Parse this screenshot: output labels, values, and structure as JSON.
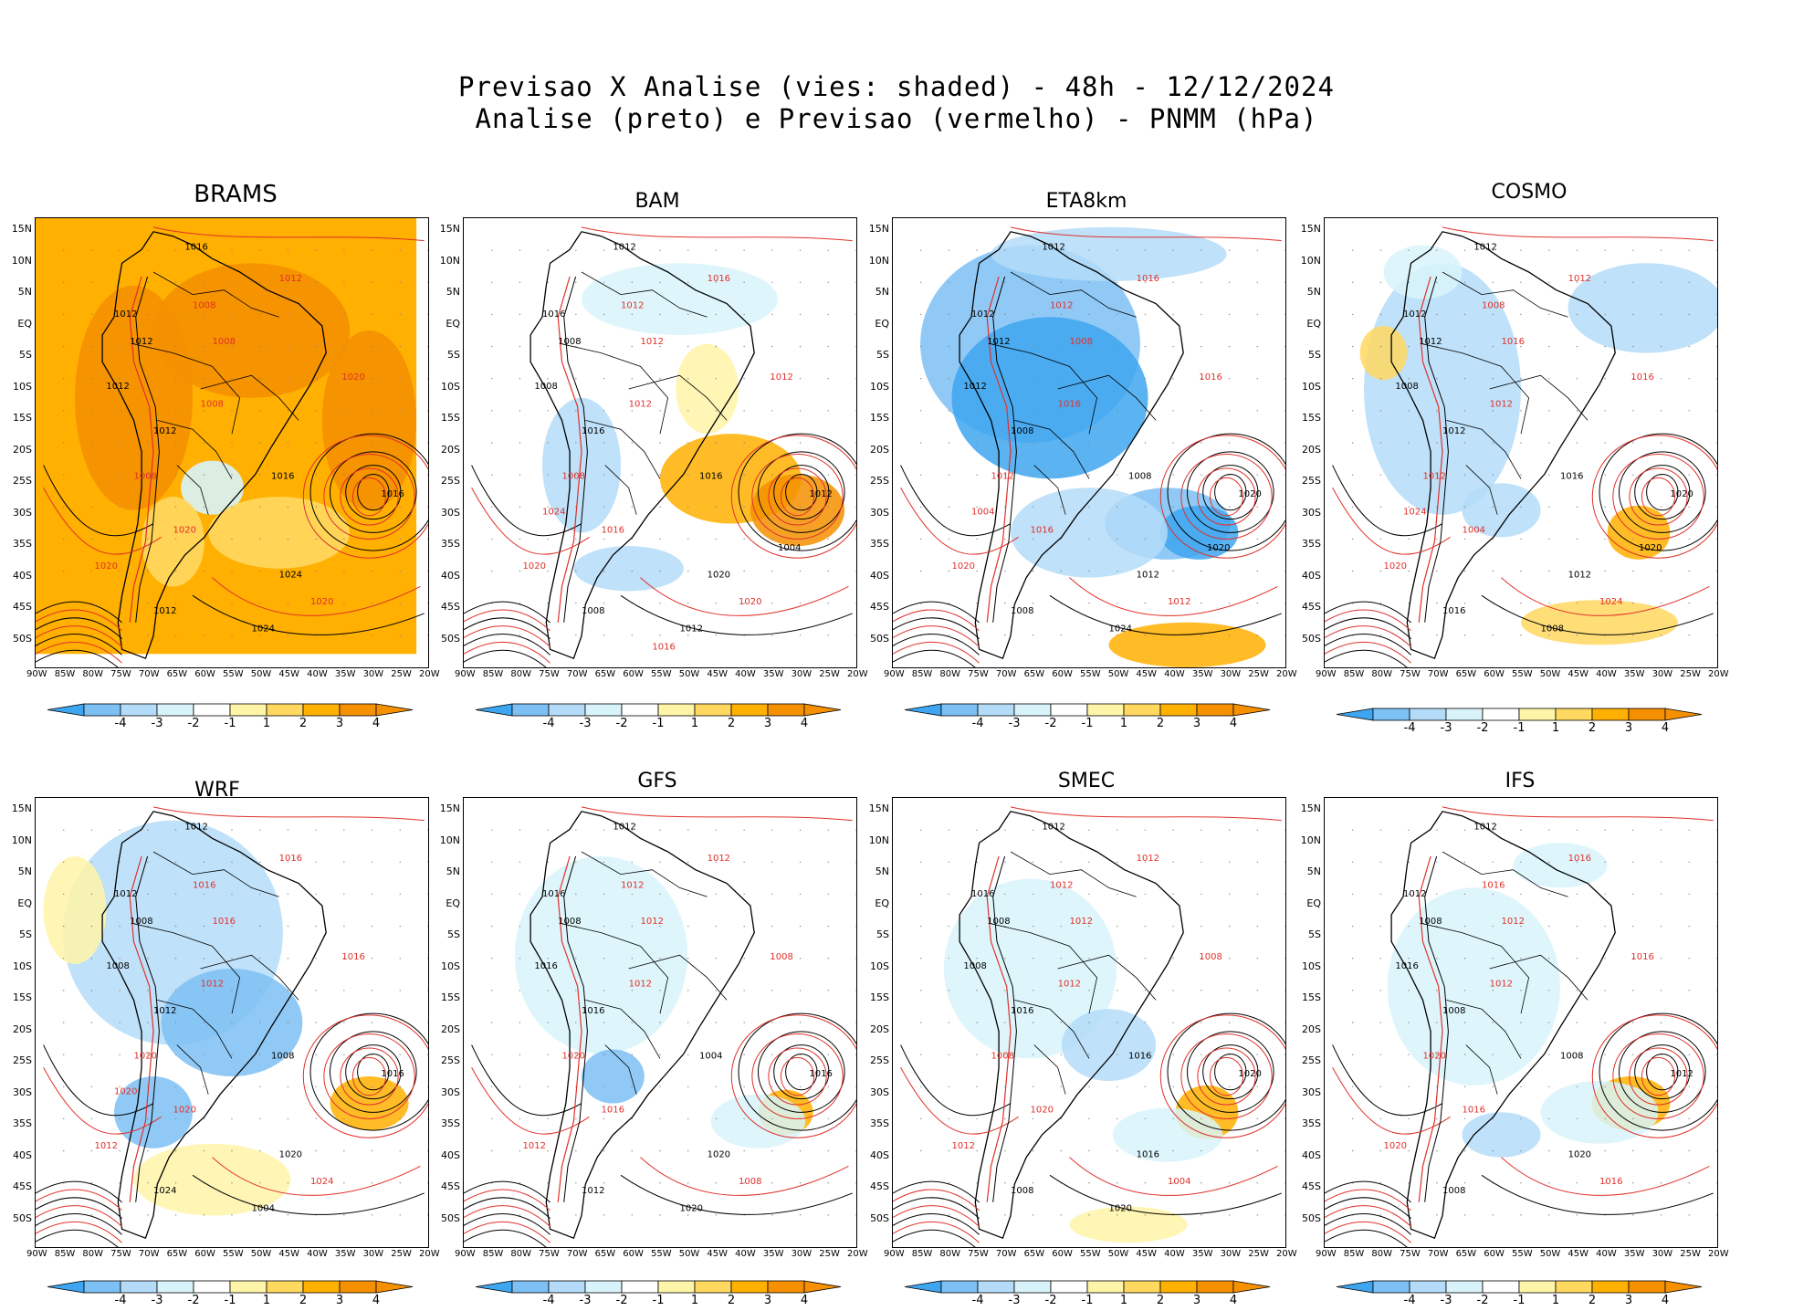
{
  "title_line1": "Previsao X Analise (vies: shaded) - 48h - 12/12/2024",
  "title_line2": "Analise (preto) e Previsao (vermelho) - PNMM (hPa)",
  "lat_labels": [
    "15N",
    "10N",
    "5N",
    "EQ",
    "5S",
    "10S",
    "15S",
    "20S",
    "25S",
    "30S",
    "35S",
    "40S",
    "45S",
    "50S"
  ],
  "lon_labels": [
    "90W",
    "85W",
    "80W",
    "75W",
    "70W",
    "65W",
    "60W",
    "55W",
    "50W",
    "45W",
    "40W",
    "35W",
    "30W",
    "25W",
    "20W"
  ],
  "colorbar_labels": [
    "-4",
    "-3",
    "-2",
    "-1",
    "1",
    "2",
    "3",
    "4"
  ],
  "colorbar_colors": [
    "#3ea6f0",
    "#7cc0f4",
    "#b4dcf8",
    "#d8f4fa",
    "#ffffff",
    "#fff5a8",
    "#ffd860",
    "#ffb000",
    "#f59000"
  ],
  "colors": {
    "analysis_contour": "#000000",
    "forecast_contour": "#e0302a",
    "coast": "#000000",
    "grid": "#888888"
  },
  "panels": [
    {
      "name": "BRAMS",
      "labels": [
        "1016",
        "1012",
        "1012",
        "1008",
        "1012",
        "1008",
        "1012",
        "1008",
        "1012",
        "1020",
        "1016",
        "1008",
        "1016",
        "1020",
        "1024",
        "1020",
        "1012",
        "1020",
        "1024"
      ]
    },
    {
      "name": "BAM",
      "labels": [
        "1012",
        "1016",
        "1016",
        "1012",
        "1008",
        "1012",
        "1008",
        "1012",
        "1016",
        "1012",
        "1016",
        "1008",
        "1012",
        "1020",
        "1020",
        "1016",
        "1008",
        "1020",
        "1012",
        "1024",
        "1004",
        "1016"
      ]
    },
    {
      "name": "ETA8km",
      "labels": [
        "1012",
        "1016",
        "1012",
        "1012",
        "1012",
        "1008",
        "1012",
        "1016",
        "1008",
        "1016",
        "1008",
        "1012",
        "1020",
        "1020",
        "1012",
        "1016",
        "1008",
        "1012",
        "1024",
        "1004",
        "1020"
      ]
    },
    {
      "name": "COSMO",
      "labels": [
        "1012",
        "1012",
        "1012",
        "1008",
        "1012",
        "1016",
        "1008",
        "1012",
        "1012",
        "1016",
        "1016",
        "1012",
        "1020",
        "1020",
        "1012",
        "1004",
        "1016",
        "1024",
        "1008",
        "1024",
        "1020"
      ]
    },
    {
      "name": "WRF",
      "labels": [
        "1012",
        "1016",
        "1012",
        "1016",
        "1008",
        "1016",
        "1008",
        "1012",
        "1012",
        "1016",
        "1008",
        "1020",
        "1016",
        "1012",
        "1020",
        "1020",
        "1024",
        "1024",
        "1004",
        "1020"
      ]
    },
    {
      "name": "GFS",
      "labels": [
        "1012",
        "1012",
        "1016",
        "1012",
        "1008",
        "1012",
        "1016",
        "1012",
        "1016",
        "1008",
        "1004",
        "1020",
        "1016",
        "1012",
        "1020",
        "1016",
        "1012",
        "1008",
        "1020"
      ]
    },
    {
      "name": "SMEC",
      "labels": [
        "1012",
        "1012",
        "1016",
        "1012",
        "1008",
        "1012",
        "1008",
        "1012",
        "1016",
        "1008",
        "1016",
        "1008",
        "1020",
        "1012",
        "1016",
        "1020",
        "1008",
        "1004",
        "1020"
      ]
    },
    {
      "name": "IFS",
      "labels": [
        "1012",
        "1016",
        "1012",
        "1016",
        "1008",
        "1012",
        "1016",
        "1012",
        "1008",
        "1016",
        "1008",
        "1020",
        "1012",
        "1020",
        "1020",
        "1016",
        "1008",
        "1016"
      ]
    }
  ]
}
